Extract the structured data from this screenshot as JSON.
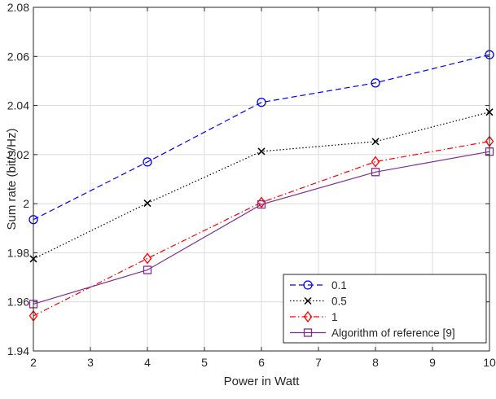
{
  "chart_data": {
    "type": "line",
    "title": "",
    "xlabel": "Power in Watt",
    "ylabel": "Sum rate (bit/s/Hz)",
    "xlim": [
      2,
      10
    ],
    "ylim": [
      1.94,
      2.08
    ],
    "x_ticks": [
      "2",
      "3",
      "4",
      "5",
      "6",
      "7",
      "8",
      "9",
      "10"
    ],
    "y_ticks": [
      "1.94",
      "1.96",
      "1.98",
      "2",
      "2.02",
      "2.04",
      "2.06",
      "2.08"
    ],
    "grid": true,
    "legend_position": "bottom-right",
    "x": [
      2,
      4,
      6,
      8,
      10
    ],
    "series": [
      {
        "name": "0.1",
        "values": [
          1.9935,
          2.017,
          2.0413,
          2.0492,
          2.0607
        ],
        "color": "#0000ff",
        "line_style": "dashed",
        "marker": "circle"
      },
      {
        "name": "0.5",
        "values": [
          1.9775,
          2.0002,
          2.0213,
          2.0253,
          2.0373
        ],
        "color": "#000000",
        "line_style": "dotted",
        "marker": "cross"
      },
      {
        "name": "1",
        "values": [
          1.9543,
          1.9777,
          2.0005,
          2.0171,
          2.0254
        ],
        "color": "#ff0000",
        "line_style": "dashdot",
        "marker": "diamond"
      },
      {
        "name": "Algorithm of reference [9]",
        "values": [
          1.9591,
          1.973,
          1.9997,
          2.0129,
          2.0212
        ],
        "color": "#7e2f8e",
        "line_style": "solid",
        "marker": "square"
      }
    ]
  }
}
